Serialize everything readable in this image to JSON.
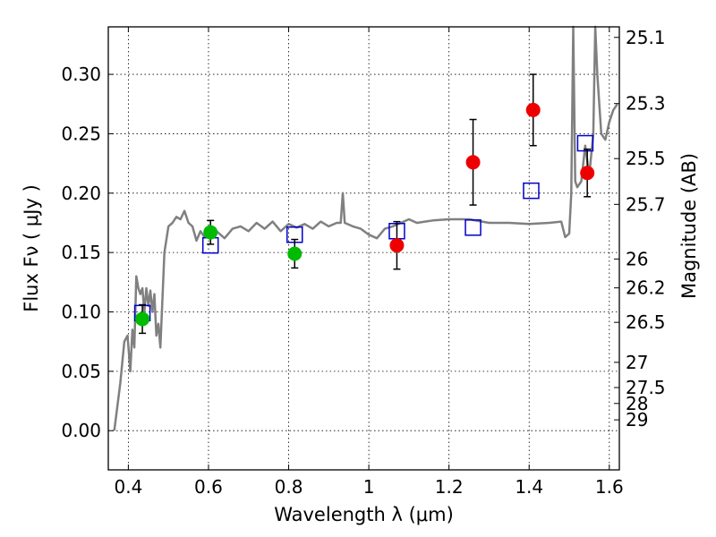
{
  "chart_data": {
    "type": "scatter",
    "title": "",
    "xlabel": "Wavelength  λ (μm)",
    "ylabel": "Flux  Fν  ( μJy )",
    "ylabel_right": "Magnitude (AB)",
    "xlim": [
      0.35,
      1.625
    ],
    "ylim": [
      -0.033,
      0.34
    ],
    "grid": true,
    "x_ticks": [
      {
        "value": 0.4,
        "label": "0.4"
      },
      {
        "value": 0.6,
        "label": "0.6"
      },
      {
        "value": 0.8,
        "label": "0.8"
      },
      {
        "value": 1.0,
        "label": "1"
      },
      {
        "value": 1.2,
        "label": "1.2"
      },
      {
        "value": 1.4,
        "label": "1.4"
      },
      {
        "value": 1.6,
        "label": "1.6"
      }
    ],
    "y_ticks": [
      {
        "value": 0.0,
        "label": "0.00"
      },
      {
        "value": 0.05,
        "label": "0.05"
      },
      {
        "value": 0.1,
        "label": "0.10"
      },
      {
        "value": 0.15,
        "label": "0.15"
      },
      {
        "value": 0.2,
        "label": "0.20"
      },
      {
        "value": 0.25,
        "label": "0.25"
      },
      {
        "value": 0.3,
        "label": "0.30"
      }
    ],
    "right_ticks": [
      {
        "mag": 25.1,
        "label": "25.1"
      },
      {
        "mag": 25.3,
        "label": "25.3"
      },
      {
        "mag": 25.5,
        "label": "25.5"
      },
      {
        "mag": 25.7,
        "label": "25.7"
      },
      {
        "mag": 26,
        "label": "26"
      },
      {
        "mag": 26.2,
        "label": "26.2"
      },
      {
        "mag": 26.5,
        "label": "26.5"
      },
      {
        "mag": 27,
        "label": "27"
      },
      {
        "mag": 27.5,
        "label": "27.5"
      },
      {
        "mag": 28,
        "label": "28"
      },
      {
        "mag": 29,
        "label": "29"
      }
    ],
    "series": [
      {
        "kind": "line",
        "color": "#808080",
        "points": [
          [
            0.365,
            0.0
          ],
          [
            0.38,
            0.04
          ],
          [
            0.39,
            0.075
          ],
          [
            0.398,
            0.08
          ],
          [
            0.405,
            0.05
          ],
          [
            0.41,
            0.085
          ],
          [
            0.415,
            0.07
          ],
          [
            0.42,
            0.13
          ],
          [
            0.425,
            0.12
          ],
          [
            0.43,
            0.115
          ],
          [
            0.435,
            0.12
          ],
          [
            0.44,
            0.1
          ],
          [
            0.445,
            0.12
          ],
          [
            0.45,
            0.105
          ],
          [
            0.455,
            0.118
          ],
          [
            0.46,
            0.1
          ],
          [
            0.465,
            0.115
          ],
          [
            0.47,
            0.08
          ],
          [
            0.475,
            0.09
          ],
          [
            0.48,
            0.07
          ],
          [
            0.49,
            0.15
          ],
          [
            0.5,
            0.172
          ],
          [
            0.51,
            0.175
          ],
          [
            0.52,
            0.18
          ],
          [
            0.53,
            0.178
          ],
          [
            0.54,
            0.185
          ],
          [
            0.55,
            0.175
          ],
          [
            0.56,
            0.172
          ],
          [
            0.57,
            0.16
          ],
          [
            0.58,
            0.168
          ],
          [
            0.59,
            0.163
          ],
          [
            0.6,
            0.165
          ],
          [
            0.62,
            0.168
          ],
          [
            0.64,
            0.162
          ],
          [
            0.66,
            0.17
          ],
          [
            0.68,
            0.172
          ],
          [
            0.7,
            0.168
          ],
          [
            0.72,
            0.175
          ],
          [
            0.74,
            0.17
          ],
          [
            0.76,
            0.176
          ],
          [
            0.78,
            0.168
          ],
          [
            0.8,
            0.174
          ],
          [
            0.82,
            0.171
          ],
          [
            0.84,
            0.174
          ],
          [
            0.86,
            0.17
          ],
          [
            0.88,
            0.176
          ],
          [
            0.9,
            0.172
          ],
          [
            0.92,
            0.175
          ],
          [
            0.93,
            0.175
          ],
          [
            0.935,
            0.2
          ],
          [
            0.94,
            0.175
          ],
          [
            0.96,
            0.172
          ],
          [
            0.98,
            0.17
          ],
          [
            1.0,
            0.165
          ],
          [
            1.02,
            0.162
          ],
          [
            1.04,
            0.17
          ],
          [
            1.06,
            0.172
          ],
          [
            1.08,
            0.175
          ],
          [
            1.1,
            0.178
          ],
          [
            1.12,
            0.175
          ],
          [
            1.14,
            0.176
          ],
          [
            1.16,
            0.177
          ],
          [
            1.2,
            0.178
          ],
          [
            1.25,
            0.178
          ],
          [
            1.3,
            0.175
          ],
          [
            1.35,
            0.175
          ],
          [
            1.4,
            0.174
          ],
          [
            1.45,
            0.175
          ],
          [
            1.48,
            0.176
          ],
          [
            1.49,
            0.163
          ],
          [
            1.5,
            0.166
          ],
          [
            1.505,
            0.2
          ],
          [
            1.51,
            0.34
          ],
          [
            1.515,
            0.21
          ],
          [
            1.52,
            0.205
          ],
          [
            1.53,
            0.21
          ],
          [
            1.54,
            0.24
          ],
          [
            1.55,
            0.215
          ],
          [
            1.56,
            0.25
          ],
          [
            1.565,
            0.34
          ],
          [
            1.57,
            0.3
          ],
          [
            1.58,
            0.25
          ],
          [
            1.59,
            0.245
          ],
          [
            1.6,
            0.26
          ],
          [
            1.61,
            0.27
          ],
          [
            1.62,
            0.275
          ]
        ]
      },
      {
        "kind": "open-square",
        "color": "#0000cc",
        "points": [
          [
            0.435,
            0.099
          ],
          [
            0.605,
            0.156
          ],
          [
            0.815,
            0.165
          ],
          [
            1.07,
            0.168
          ],
          [
            1.26,
            0.171
          ],
          [
            1.405,
            0.202
          ],
          [
            1.54,
            0.242
          ]
        ]
      },
      {
        "kind": "filled-circle",
        "color": "#00bb00",
        "points": [
          [
            0.435,
            0.094,
            0.012
          ],
          [
            0.605,
            0.167,
            0.01
          ],
          [
            0.815,
            0.149,
            0.012
          ]
        ]
      },
      {
        "kind": "filled-circle",
        "color": "#ee0000",
        "points": [
          [
            1.07,
            0.156,
            0.02
          ],
          [
            1.26,
            0.226,
            0.036
          ],
          [
            1.41,
            0.27,
            0.03
          ],
          [
            1.545,
            0.217,
            0.02
          ]
        ]
      }
    ]
  }
}
